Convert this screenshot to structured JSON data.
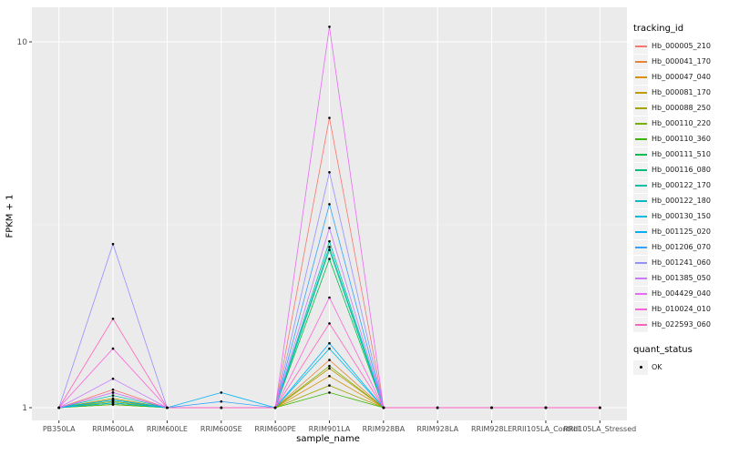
{
  "chart_data": {
    "type": "line",
    "title": "",
    "xlabel": "sample_name",
    "ylabel": "FPKM + 1",
    "y_scale": "log10",
    "y_ticks": [
      "1",
      "10"
    ],
    "ylim": [
      0.92,
      12.4
    ],
    "grid": true,
    "panel_bg": "#EBEBEB",
    "gridline_color": "#FFFFFF",
    "legend_title": "tracking_id",
    "legend_position": "right",
    "categories": [
      "PB350LA",
      "RRIM600LA",
      "RRIM600LE",
      "RRIM600SE",
      "RRIM600PE",
      "RRIM901LA",
      "RRIM928BA",
      "RRIM928LA",
      "RRIM928LE",
      "RRII105LA_Control",
      "RRII105LA_Stressed"
    ],
    "series": [
      {
        "name": "Hb_000005_210",
        "color": "#F8766D",
        "values": [
          1,
          1.12,
          1,
          1,
          1,
          6.2,
          1,
          1,
          1,
          1,
          1
        ]
      },
      {
        "name": "Hb_000041_170",
        "color": "#EA8331",
        "values": [
          1,
          1.05,
          1,
          1,
          1,
          1.35,
          1,
          1,
          1,
          1,
          1
        ]
      },
      {
        "name": "Hb_000047_040",
        "color": "#D89000",
        "values": [
          1,
          1.03,
          1,
          1,
          1,
          1.22,
          1,
          1,
          1,
          1,
          1
        ]
      },
      {
        "name": "Hb_000081_170",
        "color": "#C09B00",
        "values": [
          1,
          1.06,
          1,
          1,
          1,
          1.28,
          1,
          1,
          1,
          1,
          1
        ]
      },
      {
        "name": "Hb_000088_250",
        "color": "#A3A500",
        "values": [
          1,
          1.02,
          1,
          1,
          1,
          1.15,
          1,
          1,
          1,
          1,
          1
        ]
      },
      {
        "name": "Hb_000110_220",
        "color": "#7CAE00",
        "values": [
          1,
          1.04,
          1,
          1,
          1,
          1.3,
          1,
          1,
          1,
          1,
          1
        ]
      },
      {
        "name": "Hb_000110_360",
        "color": "#39B600",
        "values": [
          1,
          1.02,
          1,
          1,
          1,
          1.1,
          1,
          1,
          1,
          1,
          1
        ]
      },
      {
        "name": "Hb_000111_510",
        "color": "#00BB4E",
        "values": [
          1,
          1.05,
          1,
          1,
          1,
          2.55,
          1,
          1,
          1,
          1,
          1
        ]
      },
      {
        "name": "Hb_000116_080",
        "color": "#00BF7D",
        "values": [
          1,
          1.03,
          1,
          1,
          1,
          2.7,
          1,
          1,
          1,
          1,
          1
        ]
      },
      {
        "name": "Hb_000122_170",
        "color": "#00C1A3",
        "values": [
          1,
          1.08,
          1,
          1,
          1,
          2.85,
          1,
          1,
          1,
          1,
          1
        ]
      },
      {
        "name": "Hb_000122_180",
        "color": "#00BFC4",
        "values": [
          1,
          1.05,
          1,
          1,
          1,
          2.75,
          1,
          1,
          1,
          1,
          1
        ]
      },
      {
        "name": "Hb_000130_150",
        "color": "#00BAE0",
        "values": [
          1,
          1.03,
          1,
          1,
          1,
          1.45,
          1,
          1,
          1,
          1,
          1
        ]
      },
      {
        "name": "Hb_001125_020",
        "color": "#00B0F6",
        "values": [
          1,
          1.05,
          1,
          1.1,
          1,
          1.5,
          1,
          1,
          1,
          1,
          1
        ]
      },
      {
        "name": "Hb_001206_070",
        "color": "#35A2FF",
        "values": [
          1,
          1.1,
          1,
          1.04,
          1,
          3.6,
          1,
          1,
          1,
          1,
          1
        ]
      },
      {
        "name": "Hb_001241_060",
        "color": "#9590FF",
        "values": [
          1,
          2.8,
          1,
          1,
          1,
          4.4,
          1,
          1,
          1,
          1,
          1
        ]
      },
      {
        "name": "Hb_001385_050",
        "color": "#C77CFF",
        "values": [
          1,
          1.2,
          1,
          1,
          1,
          3.1,
          1,
          1,
          1,
          1,
          1
        ]
      },
      {
        "name": "Hb_004429_040",
        "color": "#E76BF3",
        "values": [
          1,
          1.1,
          1,
          1,
          1,
          11.0,
          1,
          1,
          1,
          1,
          1
        ]
      },
      {
        "name": "Hb_010024_010",
        "color": "#FA62DB",
        "values": [
          1,
          1.45,
          1,
          1,
          1,
          2.0,
          1,
          1,
          1,
          1,
          1
        ]
      },
      {
        "name": "Hb_022593_060",
        "color": "#FF62BC",
        "values": [
          1,
          1.75,
          1,
          1,
          1,
          1.7,
          1,
          1,
          1,
          1,
          1
        ]
      }
    ],
    "points": {
      "legend_title": "quant_status",
      "label": "OK",
      "color": "#000000"
    }
  }
}
